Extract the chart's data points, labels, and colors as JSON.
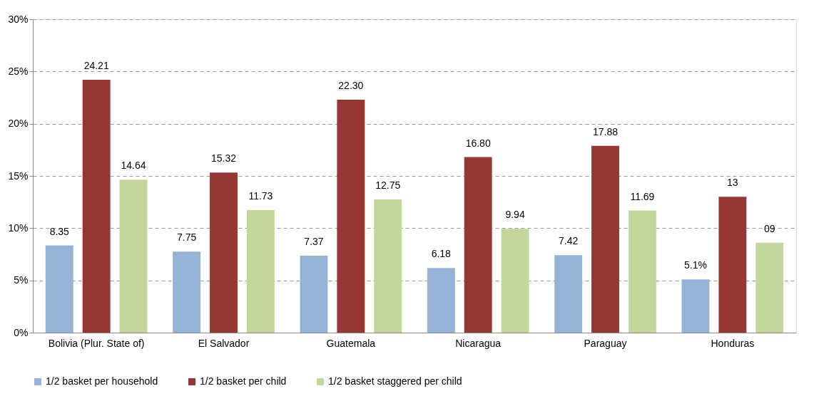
{
  "chart_data": {
    "type": "bar",
    "categories": [
      "Bolivia (Plur. State of)",
      "El Salvador",
      "Guatemala",
      "Nicaragua",
      "Paraguay",
      "Honduras"
    ],
    "series": [
      {
        "name": "1/2 basket per household",
        "color": "#95b3d7",
        "values": [
          8.35,
          7.75,
          7.37,
          6.18,
          7.42,
          5.1
        ],
        "value_labels": [
          "8.35",
          "7.75",
          "7.37",
          "6.18",
          "7.42",
          "5.1%"
        ]
      },
      {
        "name": "1/2 basket per child",
        "color": "#953735",
        "values": [
          24.21,
          15.32,
          22.3,
          16.8,
          17.88,
          13
        ],
        "value_labels": [
          "24.21",
          "15.32",
          "22.30",
          "16.80",
          "17.88",
          "13"
        ]
      },
      {
        "name": "1/2 basket staggered per child",
        "color": "#c3d69b",
        "values": [
          14.64,
          11.73,
          12.75,
          9.94,
          11.69,
          8.6
        ],
        "value_labels": [
          "14.64",
          "11.73",
          "12.75",
          "9.94",
          "11.69",
          "09"
        ]
      }
    ],
    "ylim": [
      0,
      30
    ],
    "yticks": [
      {
        "value": 0,
        "label": "0%"
      },
      {
        "value": 5,
        "label": "5%"
      },
      {
        "value": 10,
        "label": "10%"
      },
      {
        "value": 15,
        "label": "15%"
      },
      {
        "value": 20,
        "label": "20%"
      },
      {
        "value": 25,
        "label": "25%"
      },
      {
        "value": 30,
        "label": "30%"
      }
    ],
    "grid": "y",
    "legend": "bottom"
  }
}
